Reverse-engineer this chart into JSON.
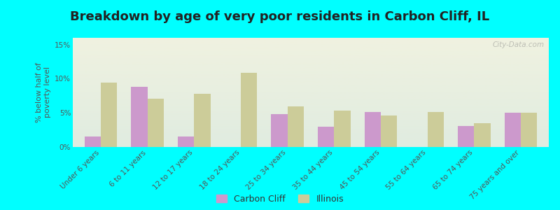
{
  "title": "Breakdown by age of very poor residents in Carbon Cliff, IL",
  "ylabel": "% below half of\npoverty level",
  "categories": [
    "Under 6 years",
    "6 to 11 years",
    "12 to 17 years",
    "18 to 24 years",
    "25 to 34 years",
    "35 to 44 years",
    "45 to 54 years",
    "55 to 64 years",
    "65 to 74 years",
    "75 years and over"
  ],
  "carbon_cliff": [
    1.5,
    8.8,
    1.5,
    0.0,
    4.8,
    3.0,
    5.1,
    0.0,
    3.1,
    5.0
  ],
  "illinois": [
    9.4,
    7.1,
    7.8,
    10.9,
    6.0,
    5.3,
    4.6,
    5.1,
    3.5,
    5.0
  ],
  "carbon_cliff_color": "#cc99cc",
  "illinois_color": "#cccc99",
  "background_color": "#00ffff",
  "plot_bg_top": "#f0f2e0",
  "plot_bg_bottom": "#e0ece0",
  "ylim": [
    0,
    16
  ],
  "yticks": [
    0,
    5,
    10,
    15
  ],
  "ytick_labels": [
    "0%",
    "5%",
    "10%",
    "15%"
  ],
  "bar_width": 0.35,
  "title_fontsize": 13,
  "label_fontsize": 7.5,
  "watermark": "City-Data.com"
}
